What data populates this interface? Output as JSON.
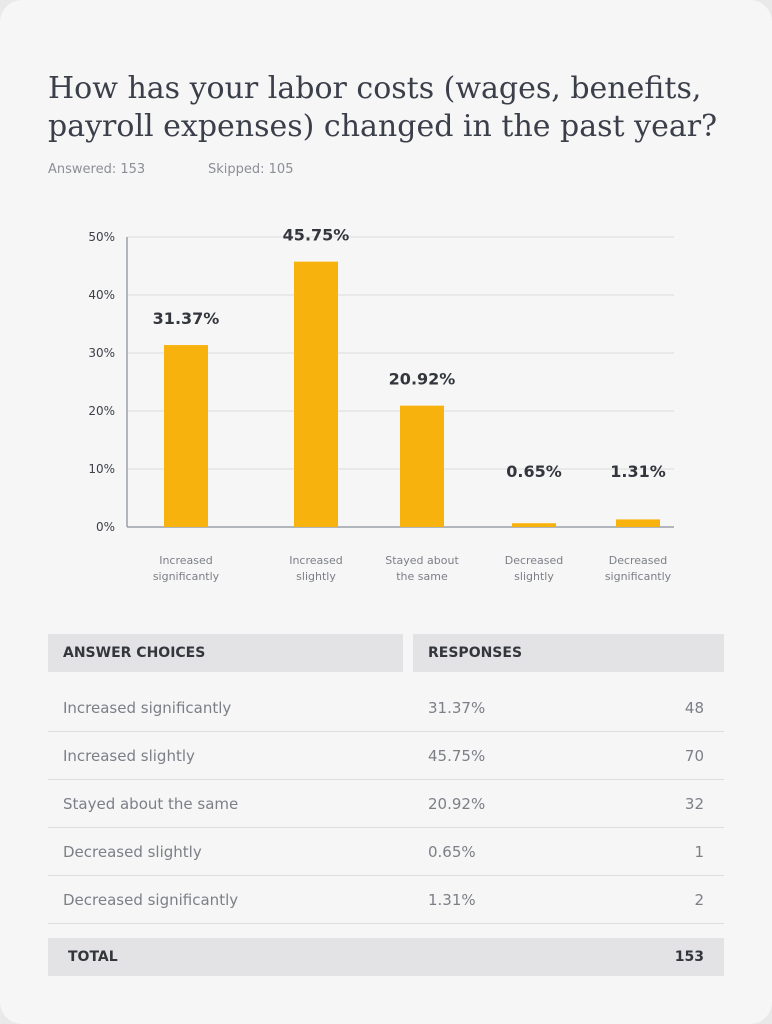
{
  "question": {
    "title": "How has your labor costs (wages, benefits, payroll expenses) changed in the past year?",
    "answered": "Answered: 153",
    "skipped": "Skipped: 105"
  },
  "colors": {
    "bar": "#f8b20d",
    "grid": "#dcdcdc",
    "axis": "#9aa0aa"
  },
  "chart_data": {
    "type": "bar",
    "categories": [
      [
        "Increased",
        "significantly"
      ],
      [
        "Increased",
        "slightly"
      ],
      [
        "Stayed about",
        "the same"
      ],
      [
        "Decreased",
        "slightly"
      ],
      [
        "Decreased",
        "significantly"
      ]
    ],
    "values": [
      31.37,
      45.75,
      20.92,
      0.65,
      1.31
    ],
    "data_labels": [
      "31.37%",
      "45.75%",
      "20.92%",
      "0.65%",
      "1.31%"
    ],
    "ylim": [
      0,
      50
    ],
    "yticks": [
      "0%",
      "10%",
      "20%",
      "30%",
      "40%",
      "50%"
    ],
    "grid": true
  },
  "table": {
    "headers": {
      "choices": "ANSWER CHOICES",
      "responses": "RESPONSES"
    },
    "rows": [
      {
        "choice": "Increased significantly",
        "percent": "31.37%",
        "count": "48"
      },
      {
        "choice": "Increased slightly",
        "percent": "45.75%",
        "count": "70"
      },
      {
        "choice": "Stayed about the same",
        "percent": "20.92%",
        "count": "32"
      },
      {
        "choice": "Decreased slightly",
        "percent": "0.65%",
        "count": "1"
      },
      {
        "choice": "Decreased significantly",
        "percent": "1.31%",
        "count": "2"
      }
    ],
    "total_label": "TOTAL",
    "total_value": "153"
  }
}
